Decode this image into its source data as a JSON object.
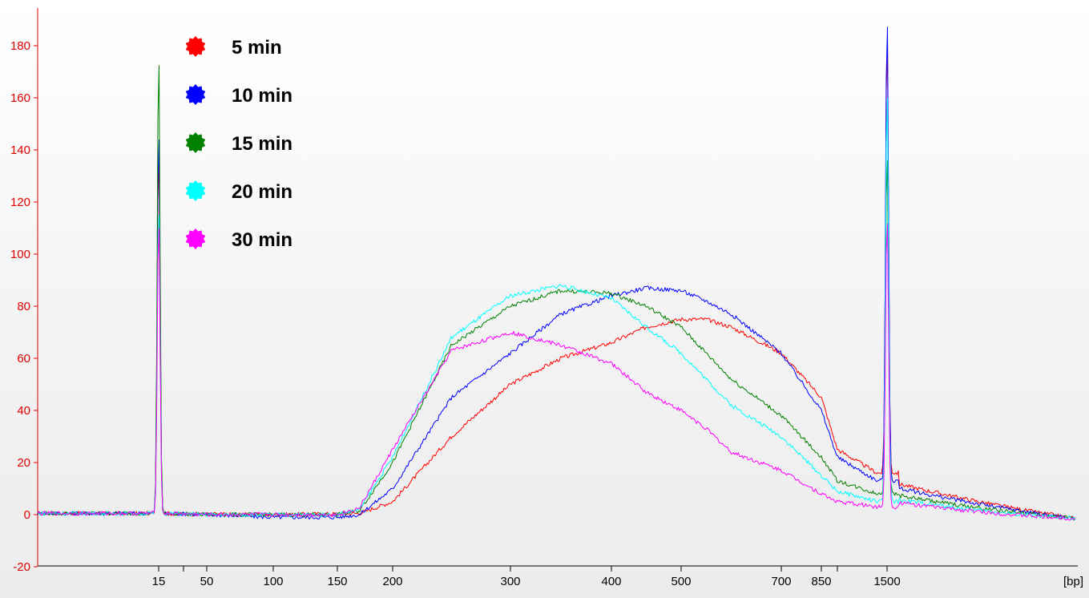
{
  "chart_data": {
    "type": "line",
    "title": "",
    "xlabel": "[bp]",
    "ylabel": "",
    "ylim": [
      -20,
      190
    ],
    "yticks": [
      -20,
      0,
      20,
      40,
      60,
      80,
      100,
      120,
      140,
      160,
      180
    ],
    "xticks": [
      {
        "label": "15",
        "bp": 15
      },
      {
        "label": "",
        "bp": 25
      },
      {
        "label": "50",
        "bp": 50
      },
      {
        "label": "100",
        "bp": 100
      },
      {
        "label": "150",
        "bp": 150
      },
      {
        "label": "200",
        "bp": 200
      },
      {
        "label": "300",
        "bp": 300
      },
      {
        "label": "400",
        "bp": 400
      },
      {
        "label": "500",
        "bp": 500
      },
      {
        "label": "700",
        "bp": 700
      },
      {
        "label": "850",
        "bp": 850
      },
      {
        "label": "",
        "bp": 1000
      },
      {
        "label": "1500",
        "bp": 1500
      }
    ],
    "grid": false,
    "legend_position": "top-left",
    "marker_peaks": {
      "lower": {
        "bp": 15,
        "heights": {
          "5 min": 143,
          "10 min": 150,
          "15 min": 180,
          "20 min": 120,
          "30 min": 115
        }
      },
      "upper": {
        "bp": 1500,
        "heights": {
          "5 min": 170,
          "10 min": 180,
          "15 min": 133,
          "20 min": 160,
          "30 min": 113
        }
      }
    },
    "series": [
      {
        "name": "5 min",
        "color": "#ff0000",
        "points": [
          [
            15,
            0.5
          ],
          [
            25,
            0.3
          ],
          [
            50,
            0.2
          ],
          [
            100,
            0
          ],
          [
            150,
            0.3
          ],
          [
            170,
            0.5
          ],
          [
            200,
            5
          ],
          [
            250,
            30
          ],
          [
            300,
            50
          ],
          [
            350,
            60
          ],
          [
            400,
            66
          ],
          [
            450,
            72
          ],
          [
            500,
            75
          ],
          [
            550,
            75
          ],
          [
            600,
            72
          ],
          [
            700,
            62
          ],
          [
            850,
            45
          ],
          [
            1000,
            25
          ],
          [
            1400,
            16
          ]
        ]
      },
      {
        "name": "10 min",
        "color": "#0000ff",
        "points": [
          [
            15,
            0.5
          ],
          [
            25,
            0.3
          ],
          [
            50,
            0
          ],
          [
            100,
            -1
          ],
          [
            150,
            -1
          ],
          [
            170,
            0
          ],
          [
            200,
            10
          ],
          [
            250,
            45
          ],
          [
            300,
            62
          ],
          [
            350,
            77
          ],
          [
            400,
            84
          ],
          [
            450,
            87
          ],
          [
            500,
            86
          ],
          [
            550,
            82
          ],
          [
            600,
            77
          ],
          [
            700,
            62
          ],
          [
            850,
            40
          ],
          [
            1000,
            22
          ],
          [
            1400,
            13
          ]
        ]
      },
      {
        "name": "15 min",
        "color": "#008000",
        "points": [
          [
            15,
            0.5
          ],
          [
            25,
            0.3
          ],
          [
            50,
            0
          ],
          [
            100,
            0
          ],
          [
            150,
            0
          ],
          [
            170,
            1.5
          ],
          [
            200,
            20
          ],
          [
            250,
            65
          ],
          [
            300,
            80
          ],
          [
            350,
            86
          ],
          [
            400,
            85
          ],
          [
            450,
            80
          ],
          [
            500,
            72
          ],
          [
            550,
            62
          ],
          [
            600,
            52
          ],
          [
            700,
            38
          ],
          [
            850,
            22
          ],
          [
            1000,
            13
          ],
          [
            1400,
            8
          ]
        ]
      },
      {
        "name": "20 min",
        "color": "#00ffff",
        "points": [
          [
            15,
            0.5
          ],
          [
            25,
            0.3
          ],
          [
            50,
            0
          ],
          [
            100,
            0
          ],
          [
            150,
            0
          ],
          [
            170,
            2
          ],
          [
            200,
            22
          ],
          [
            250,
            68
          ],
          [
            300,
            84
          ],
          [
            350,
            88
          ],
          [
            400,
            83
          ],
          [
            450,
            72
          ],
          [
            500,
            62
          ],
          [
            550,
            52
          ],
          [
            600,
            42
          ],
          [
            700,
            30
          ],
          [
            850,
            15
          ],
          [
            1000,
            9
          ],
          [
            1400,
            5
          ]
        ]
      },
      {
        "name": "30 min",
        "color": "#ff00ff",
        "points": [
          [
            15,
            0.5
          ],
          [
            25,
            0.3
          ],
          [
            50,
            0
          ],
          [
            100,
            0
          ],
          [
            150,
            0
          ],
          [
            170,
            2.5
          ],
          [
            200,
            25
          ],
          [
            250,
            63
          ],
          [
            300,
            70
          ],
          [
            350,
            65
          ],
          [
            400,
            58
          ],
          [
            450,
            47
          ],
          [
            500,
            40
          ],
          [
            550,
            33
          ],
          [
            600,
            24
          ],
          [
            700,
            17
          ],
          [
            850,
            8
          ],
          [
            1000,
            5
          ],
          [
            1400,
            3
          ]
        ]
      }
    ]
  }
}
